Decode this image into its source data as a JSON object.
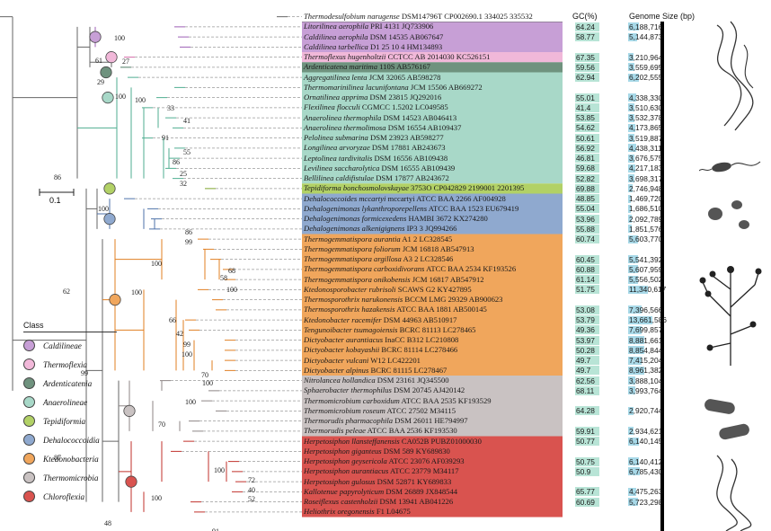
{
  "header": {
    "gc_label": "GC(%)",
    "genome_label": "Genome Size (bp)"
  },
  "scale": {
    "label": "0.1"
  },
  "bootstraps": [
    "100",
    "61",
    "27",
    "29",
    "100",
    "33",
    "41",
    "91",
    "100",
    "55",
    "86",
    "25",
    "32",
    "86",
    "100",
    "86",
    "99",
    "100",
    "68",
    "58",
    "100",
    "100",
    "62",
    "66",
    "42",
    "99",
    "100",
    "70",
    "100",
    "99",
    "100",
    "70",
    "87",
    "100",
    "72",
    "40",
    "52",
    "100",
    "48",
    "91"
  ],
  "classes": [
    {
      "name": "Caldilineae",
      "color": "#c79fd6"
    },
    {
      "name": "Thermoflexia",
      "color": "#f1b8d9"
    },
    {
      "name": "Ardenticatenia",
      "color": "#6f927e"
    },
    {
      "name": "Anaerolineae",
      "color": "#a8d8c8"
    },
    {
      "name": "Tepidiformia",
      "color": "#b2d166"
    },
    {
      "name": "Dehalococcoidia",
      "color": "#8fa9cf"
    },
    {
      "name": "Ktedonobacteria",
      "color": "#f0a65c"
    },
    {
      "name": "Thermomicrobia",
      "color": "#c9c2c2"
    },
    {
      "name": "Chloroflexia",
      "color": "#d9534f"
    }
  ],
  "legend": {
    "title": "Class"
  },
  "taxa": [
    {
      "name": "Thermodesulfobium narugense DSM14796T CP002690.1 334025 335532",
      "gc": "",
      "genome": "",
      "class": "none"
    },
    {
      "name": "Litorilinea aerophila PRI 4131 JQ733906",
      "gc": "64.24",
      "genome": "6,188,716",
      "class": "Caldilineae"
    },
    {
      "name": "Caldilinea aerophila DSM 14535 AB067647",
      "gc": "58.77",
      "genome": "5,144,873",
      "class": "Caldilineae"
    },
    {
      "name": "Caldilinea tarbellica D1 25 10 4 HM134893",
      "gc": "",
      "genome": "",
      "class": "Caldilineae"
    },
    {
      "name": "Thermoflexus hugenholtzii CCTCC AB 2014030 KC526151",
      "gc": "67.35",
      "genome": "3,210,964",
      "class": "Thermoflexia"
    },
    {
      "name": "Ardenticatena maritima 110S AB576167",
      "gc": "59.56",
      "genome": "3,559,695",
      "class": "Ardenticatenia"
    },
    {
      "name": "Aggregatilinea lenta JCM 32065 AB598278",
      "gc": "62.94",
      "genome": "6,202,555",
      "class": "Anaerolineae"
    },
    {
      "name": "Thermomarinilinea lacunifontana JCM 15506 AB669272",
      "gc": "",
      "genome": "",
      "class": "Anaerolineae"
    },
    {
      "name": "Ornatilinea apprima DSM 23815 JQ292016",
      "gc": "55.01",
      "genome": "4,338,330",
      "class": "Anaerolineae"
    },
    {
      "name": "Flexilinea flocculi CGMCC 1.5202 LC049585",
      "gc": "41.4",
      "genome": "3,510,630",
      "class": "Anaerolineae"
    },
    {
      "name": "Anaerolinea thermophila DSM 14523 AB046413",
      "gc": "53.85",
      "genome": "3,532,378",
      "class": "Anaerolineae"
    },
    {
      "name": "Anaerolinea thermolimosa DSM 16554 AB109437",
      "gc": "54.62",
      "genome": "4,173,865",
      "class": "Anaerolineae"
    },
    {
      "name": "Pelolinea submarina DSM 23923 AB598277",
      "gc": "50.61",
      "genome": "3,519,887",
      "class": "Anaerolineae"
    },
    {
      "name": "Longilinea arvoryzae DSM 17881 AB243673",
      "gc": "56.92",
      "genome": "4,438,311",
      "class": "Anaerolineae"
    },
    {
      "name": "Leptolinea tardivitalis DSM 16556 AB109438",
      "gc": "46.81",
      "genome": "3,676,575",
      "class": "Anaerolineae"
    },
    {
      "name": "Levilinea saccharolytica DSM 16555 AB109439",
      "gc": "59.68",
      "genome": "4,217,183",
      "class": "Anaerolineae"
    },
    {
      "name": "Bellilinea caldifistulae DSM 17877 AB243672",
      "gc": "52.82",
      "genome": "3,698,317",
      "class": "Anaerolineae"
    },
    {
      "name": "Tepidiforma bonchosmolovskayae 3753O CP042829 2199001 2201395",
      "gc": "69.88",
      "genome": "2,746,948",
      "class": "Tepidiformia"
    },
    {
      "name": "Dehalococcoides mccartyi mccartyi ATCC BAA 2266 AF004928",
      "gc": "48.85",
      "genome": "1,469,720",
      "class": "Dehalococcoidia"
    },
    {
      "name": "Dehalogenimonas lykanthroporepellens ATCC BAA 1523 EU679419",
      "gc": "55.04",
      "genome": "1,686,510",
      "class": "Dehalococcoidia"
    },
    {
      "name": "Dehalogenimonas formicexedens HAMBI 3672 KX274280",
      "gc": "53.96",
      "genome": "2,092,789",
      "class": "Dehalococcoidia"
    },
    {
      "name": "Dehalogenimonas alkenigignens IP3 3 JQ994266",
      "gc": "55.88",
      "genome": "1,851,576",
      "class": "Dehalococcoidia"
    },
    {
      "name": "Thermogemmatispora aurantia A1 2 LC328545",
      "gc": "60.74",
      "genome": "5,603,770",
      "class": "Ktedonobacteria"
    },
    {
      "name": "Thermogemmatispora foliorum JCM 16818 AB547913",
      "gc": "",
      "genome": "",
      "class": "Ktedonobacteria"
    },
    {
      "name": "Thermogemmatispora argillosa A3 2 LC328546",
      "gc": "60.45",
      "genome": "5,541,392",
      "class": "Ktedonobacteria"
    },
    {
      "name": "Thermogemmatispora carboxidivorans ATCC BAA 2534 KF193526",
      "gc": "60.88",
      "genome": "5,607,959",
      "class": "Ktedonobacteria"
    },
    {
      "name": "Thermogemmatispora onikobensis JCM 16817 AB547912",
      "gc": "61.14",
      "genome": "5,556,502",
      "class": "Ktedonobacteria"
    },
    {
      "name": "Ktedonosporobacter rubrisoli SCAWS G2 KY427895",
      "gc": "51.75",
      "genome": "11,340,617",
      "class": "Ktedonobacteria"
    },
    {
      "name": "Thermosporothrix narukonensis BCCM LMG 29329 AB900623",
      "gc": "",
      "genome": "",
      "class": "Ktedonobacteria"
    },
    {
      "name": "Thermosporothrix hazakensis ATCC BAA 1881 AB500145",
      "gc": "53.08",
      "genome": "7,396,566",
      "class": "Ktedonobacteria"
    },
    {
      "name": "Ktedonobacter racemifer DSM 44963 AB510917",
      "gc": "53.79",
      "genome": "13,661,586",
      "class": "Ktedonobacteria"
    },
    {
      "name": "Tengunoibacter tsumagoiensis BCRC 81113 LC278465",
      "gc": "49.36",
      "genome": "7,699,857",
      "class": "Ktedonobacteria"
    },
    {
      "name": "Dictyobacter aurantiacus InaCC B312 LC210808",
      "gc": "53.97",
      "genome": "8,881,661",
      "class": "Ktedonobacteria"
    },
    {
      "name": "Dictyobacter kobayashii BCRC 81114 LC278466",
      "gc": "50.28",
      "genome": "8,854,844",
      "class": "Ktedonobacteria"
    },
    {
      "name": "Dictyobacter vulcani W12 LC422201",
      "gc": "49.7",
      "genome": "7,415,204",
      "class": "Ktedonobacteria"
    },
    {
      "name": "Dictyobacter alpinus BCRC 81115 LC278467",
      "gc": "49.7",
      "genome": "8,961,382",
      "class": "Ktedonobacteria"
    },
    {
      "name": "Nitrolancea hollandica DSM 23161 JQ345500",
      "gc": "62.56",
      "genome": "3,888,104",
      "class": "Thermomicrobia"
    },
    {
      "name": "Sphaerobacter thermophilus DSM 20745 AJ420142",
      "gc": "68.11",
      "genome": "3,993,764",
      "class": "Thermomicrobia"
    },
    {
      "name": "Thermomicrobium carboxidum ATCC BAA 2535 KF193529",
      "gc": "",
      "genome": "",
      "class": "Thermomicrobia"
    },
    {
      "name": "Thermomicrobium roseum ATCC 27502 M34115",
      "gc": "64.28",
      "genome": "2,920,744",
      "class": "Thermomicrobia"
    },
    {
      "name": "Thermorudis pharmacophila DSM 26011 HE794997",
      "gc": "",
      "genome": "",
      "class": "Thermomicrobia"
    },
    {
      "name": "Thermorudis peleae ATCC BAA 2536 KF193530",
      "gc": "59.91",
      "genome": "2,934,621",
      "class": "Thermomicrobia"
    },
    {
      "name": "Herpetosiphon llansteffanensis CA052B PUBZ01000030",
      "gc": "50.77",
      "genome": "6,140,145",
      "class": "Chloroflexia"
    },
    {
      "name": "Herpetosiphon giganteus DSM 589 KY689830",
      "gc": "",
      "genome": "",
      "class": "Chloroflexia"
    },
    {
      "name": "Herpetosiphon geysericola ATCC 23076 AF039293",
      "gc": "50.75",
      "genome": "6,140,412",
      "class": "Chloroflexia"
    },
    {
      "name": "Herpetosiphon aurantiacus ATCC 23779 M34117",
      "gc": "50.9",
      "genome": "6,785,430",
      "class": "Chloroflexia"
    },
    {
      "name": "Herpetosiphon gulosus DSM 52871 KY689833",
      "gc": "",
      "genome": "",
      "class": "Chloroflexia"
    },
    {
      "name": "Kallotenue papyrolyticum DSM 26889 JX848544",
      "gc": "65.77",
      "genome": "4,475,263",
      "class": "Chloroflexia"
    },
    {
      "name": "Roseiflexus castenholzii DSM 13941 AB041226",
      "gc": "60.69",
      "genome": "5,723,298",
      "class": "Chloroflexia"
    },
    {
      "name": "Heliothrix oregonensis F1 L04675",
      "gc": "",
      "genome": "",
      "class": "Chloroflexia"
    }
  ]
}
